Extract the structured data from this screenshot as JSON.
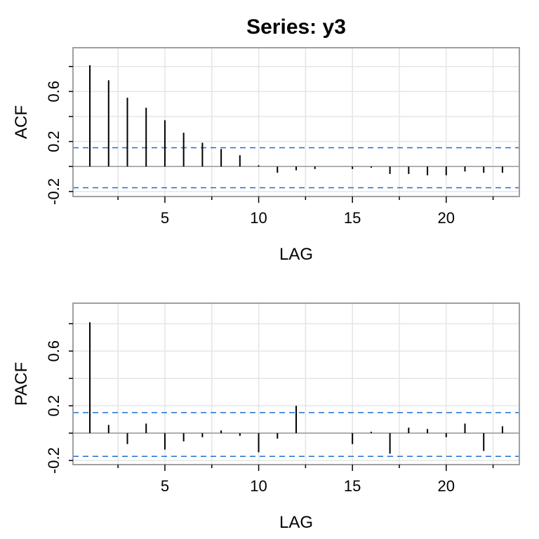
{
  "chart_data": {
    "type": "bar",
    "title": "Series:  y3",
    "colors": {
      "ci": "#1f6fd0",
      "bar": "#000000",
      "grid": "#e5e5e5",
      "zero": "#999999",
      "frame": "#a0a0a0"
    },
    "panels": [
      {
        "name": "acf",
        "ylabel": "ACF",
        "xlabel": "LAG",
        "xlim": [
          0.1,
          23.9
        ],
        "ylim": [
          -0.24,
          0.95
        ],
        "yticks": [
          -0.2,
          0,
          0.2,
          0.4,
          0.6,
          0.8
        ],
        "ytick_labels": [
          {
            "v": -0.2,
            "t": "-0.2"
          },
          {
            "v": 0.2,
            "t": "0.2"
          },
          {
            "v": 0.6,
            "t": "0.6"
          }
        ],
        "xticks": [
          2.5,
          5,
          7.5,
          10,
          12.5,
          15,
          17.5,
          20,
          22.5
        ],
        "xtick_labels": [
          {
            "v": 5,
            "t": "5"
          },
          {
            "v": 10,
            "t": "10"
          },
          {
            "v": 15,
            "t": "15"
          },
          {
            "v": 20,
            "t": "20"
          }
        ],
        "ci": [
          0.15,
          -0.17
        ],
        "lags": [
          1,
          2,
          3,
          4,
          5,
          6,
          7,
          8,
          9,
          10,
          11,
          12,
          13,
          14,
          15,
          16,
          17,
          18,
          19,
          20,
          21,
          22,
          23
        ],
        "values": [
          0.81,
          0.69,
          0.55,
          0.47,
          0.37,
          0.27,
          0.19,
          0.14,
          0.09,
          0.01,
          -0.05,
          -0.03,
          -0.02,
          0.0,
          -0.02,
          -0.01,
          -0.06,
          -0.06,
          -0.07,
          -0.07,
          -0.04,
          -0.05,
          -0.05
        ]
      },
      {
        "name": "pacf",
        "ylabel": "PACF",
        "xlabel": "LAG",
        "xlim": [
          0.1,
          23.9
        ],
        "ylim": [
          -0.23,
          0.95
        ],
        "yticks": [
          -0.2,
          0,
          0.2,
          0.4,
          0.6,
          0.8
        ],
        "ytick_labels": [
          {
            "v": -0.2,
            "t": "-0.2"
          },
          {
            "v": 0.2,
            "t": "0.2"
          },
          {
            "v": 0.6,
            "t": "0.6"
          }
        ],
        "xticks": [
          2.5,
          5,
          7.5,
          10,
          12.5,
          15,
          17.5,
          20,
          22.5
        ],
        "xtick_labels": [
          {
            "v": 5,
            "t": "5"
          },
          {
            "v": 10,
            "t": "10"
          },
          {
            "v": 15,
            "t": "15"
          },
          {
            "v": 20,
            "t": "20"
          }
        ],
        "ci": [
          0.15,
          -0.17
        ],
        "lags": [
          1,
          2,
          3,
          4,
          5,
          6,
          7,
          8,
          9,
          10,
          11,
          12,
          13,
          14,
          15,
          16,
          17,
          18,
          19,
          20,
          21,
          22,
          23
        ],
        "values": [
          0.81,
          0.06,
          -0.08,
          0.07,
          -0.12,
          -0.06,
          -0.03,
          0.02,
          -0.02,
          -0.14,
          -0.04,
          0.2,
          0.0,
          0.0,
          -0.08,
          0.01,
          -0.15,
          0.04,
          0.03,
          -0.03,
          0.07,
          -0.13,
          0.05
        ]
      }
    ]
  }
}
